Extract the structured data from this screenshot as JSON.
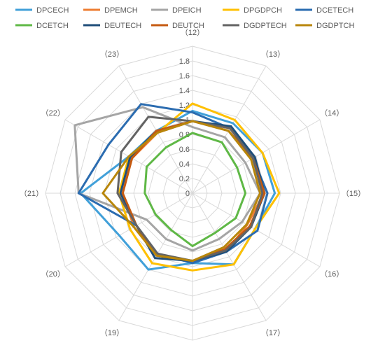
{
  "chart_data": {
    "type": "radar",
    "title": "",
    "categories": [
      "（12）",
      "（13）",
      "（14）",
      "（15）",
      "（16）",
      "（17）",
      "（18）",
      "（19）",
      "（20）",
      "（21）",
      "（22）",
      "（23）"
    ],
    "r_ticks": [
      "0",
      "0.2",
      "0.4",
      "0.6",
      "0.8",
      "1",
      "1.2",
      "1.4",
      "1.6",
      "1.8"
    ],
    "rmax": 2.0,
    "grid": true,
    "legend_position": "top",
    "series": [
      {
        "name": "DPCECH",
        "color": "#41a0d9",
        "values": [
          1.12,
          1.1,
          1.1,
          1.12,
          0.98,
          1.12,
          0.95,
          1.2,
          1.15,
          1.52,
          1.0,
          0.98
        ]
      },
      {
        "name": "DPEMCH",
        "color": "#ed7d31",
        "values": [
          0.98,
          1.02,
          0.95,
          0.97,
          0.86,
          0.92,
          0.92,
          0.98,
          0.92,
          0.95,
          0.95,
          0.95
        ]
      },
      {
        "name": "DPEICH",
        "color": "#a5a5a5",
        "values": [
          0.9,
          0.88,
          0.83,
          0.92,
          0.78,
          0.72,
          0.78,
          0.72,
          0.72,
          1.55,
          1.85,
          1.35
        ]
      },
      {
        "name": "DPGDPCH",
        "color": "#ffc000",
        "values": [
          1.22,
          1.15,
          1.1,
          1.18,
          0.98,
          1.12,
          1.05,
          1.1,
          0.98,
          1.0,
          1.0,
          0.95
        ]
      },
      {
        "name": "DCETECH",
        "color": "#2b6cb0",
        "values": [
          1.1,
          1.02,
          0.95,
          1.02,
          1.02,
          0.92,
          0.95,
          0.95,
          0.88,
          1.55,
          1.32,
          1.4
        ]
      },
      {
        "name": "DCETCH",
        "color": "#5fb846",
        "values": [
          0.82,
          0.8,
          0.7,
          0.72,
          0.68,
          0.62,
          0.72,
          0.58,
          0.58,
          0.65,
          0.72,
          0.72
        ]
      },
      {
        "name": "DEUTECH",
        "color": "#1f4e79",
        "values": [
          0.98,
          1.05,
          0.98,
          0.98,
          0.92,
          0.92,
          0.92,
          1.02,
          0.88,
          0.98,
          0.98,
          0.98
        ]
      },
      {
        "name": "DEUTCH",
        "color": "#c55a11",
        "values": [
          0.98,
          0.98,
          0.95,
          0.98,
          0.9,
          0.88,
          0.92,
          0.98,
          0.88,
          0.95,
          0.95,
          0.98
        ]
      },
      {
        "name": "DGDPTECH",
        "color": "#636363",
        "values": [
          0.98,
          1.02,
          0.95,
          0.95,
          0.92,
          0.9,
          0.92,
          0.95,
          0.88,
          1.02,
          1.12,
          1.2
        ]
      },
      {
        "name": "DGDPTCH",
        "color": "#b8860b",
        "values": [
          0.98,
          0.98,
          0.92,
          0.92,
          0.85,
          0.85,
          0.92,
          0.98,
          0.92,
          1.22,
          1.0,
          0.95
        ]
      }
    ]
  }
}
